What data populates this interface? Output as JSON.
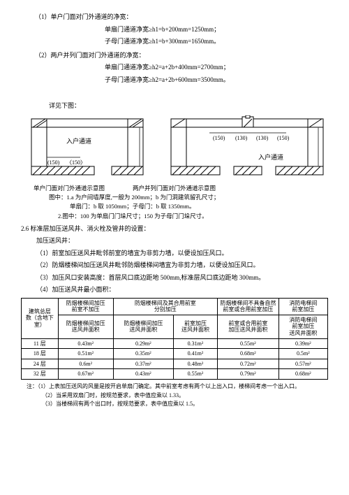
{
  "item1": {
    "title": "（1）单户门面对门外通道的净宽：",
    "line1": "单扇门通道净宽≥h1=b+200mm=1250mm；",
    "line2": "子母门通道净宽≥h1=b+300mm=1650mm。"
  },
  "item2": {
    "title": "（2）两户并列门面对门外通道的净宽：",
    "line1": "单扇门通道净宽≥h2=a+2b+400mm=2700mm；",
    "line2": "子母门通道净宽≥h2=a+2b+600mm=3500mm。"
  },
  "diagref": "详见下图：",
  "diag": {
    "label_corridor": "入户通道",
    "dim150": "(150)",
    "dim150b": "(150)",
    "dim150c": "(150)",
    "dim130a": "(130)",
    "dim130b": "(130)",
    "label_corridor2": "入户通道"
  },
  "captions": {
    "left": "单户门面对门外通道示意图",
    "right": "两户并列门面对门外通道示意图",
    "note1": "图中：1.a 为户间墙厚度,一般为 200mm；b 为门洞建筑留孔尺寸；",
    "note2": "单扇门：b 取 1050mm；子母门：b 取 1350mm。",
    "note3": "2.图中：100 为单扇门门垛尺寸；150 为子母门门垛尺寸。"
  },
  "sec26": {
    "head": "2.6  标准层加压送风井、消火栓及管井的设置：",
    "sub": "加压送风井：",
    "p1": "（1）前室加压送风井毗邻前室的墙宜为非剪力墙，以便设加压风口。",
    "p2": "（2）防烟楼梯间加压送风井毗邻防烟楼梯间墙宜为非剪力墙，以便设加压风口。",
    "p3": "（3）加压风口安装高度：首层风口底边距地 500mm,标准层风口底边距地 300mm。",
    "p4": "（4）加压送风井最小面积："
  },
  "table": {
    "h1": "防烟楼梯间加压\n前室不加压",
    "h2": "防烟楼梯间及其合用前室\n分别加压",
    "h3": "防烟楼梯间不具备自然\n前室或合用前室加压",
    "h4": "消防电梯间\n前室加压",
    "rowh": "建筑总层\n数（含地下\n室）",
    "sh1": "防烟楼梯间加压\n送风井面积",
    "sh2": "防烟楼梯间加压\n送风井面积",
    "sh3": "前室加压\n送风井面积",
    "sh4": "前室或合用前室\n加压送风井面积",
    "sh5": "消防电梯间\n前室加压\n送风井面积",
    "rows": [
      {
        "f": "11 层",
        "a": "0.43m²",
        "b": "0.29m²",
        "c": "0.31m²",
        "d": "0.55m²",
        "e": "0.39m²"
      },
      {
        "f": "18 层",
        "a": "0.51m²",
        "b": "0.35m²",
        "c": "0.41m²",
        "d": "0.68m²",
        "e": "0.5m²"
      },
      {
        "f": "24 层",
        "a": "0.6m²",
        "b": "0.37m²",
        "c": "0.48m²",
        "d": "0.72m²",
        "e": "0.57m²"
      },
      {
        "f": "32 层",
        "a": "0.67m²",
        "b": "0.43m²",
        "c": "0.55m²",
        "d": "0.79m²",
        "e": "0.68m²"
      }
    ]
  },
  "notes": {
    "head": "注：（1）上表加压送风的风量是按开启单扇门确定。其中前室考虑有两个以上出入口，楼梯间考虑一个出入口。",
    "n2": "（2）当采用双扇门时，按规范要求，表中值应乘以 1.33。",
    "n3": "（3）当楼梯间有两个出口时，按规范要求，表中值应乘以 1.5。"
  },
  "colors": {
    "text": "#000000",
    "bg": "#ffffff",
    "stroke": "#000000"
  }
}
